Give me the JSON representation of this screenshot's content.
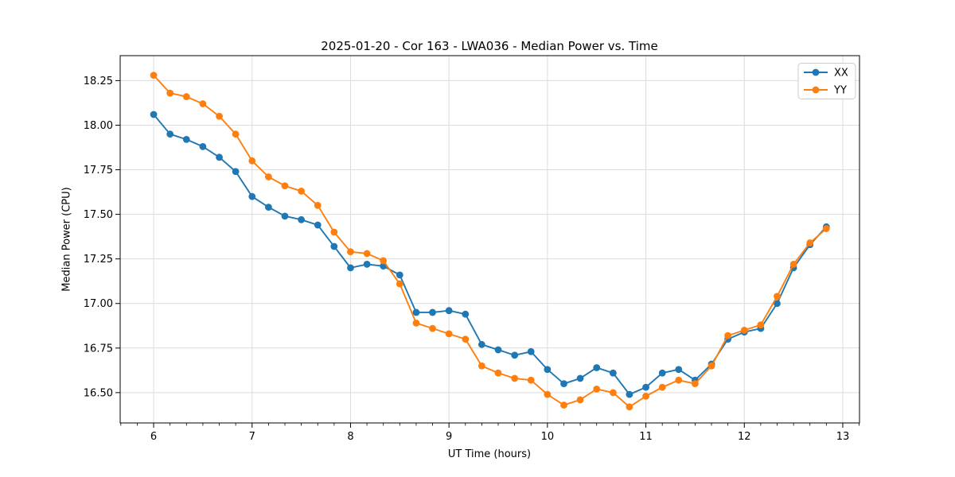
{
  "chart_data": {
    "type": "line",
    "title": "2025-01-20 - Cor 163 - LWA036 - Median Power vs. Time",
    "xlabel": "UT Time (hours)",
    "ylabel": "Median Power (CPU)",
    "xlim": [
      5.66,
      13.17
    ],
    "ylim": [
      16.33,
      18.39
    ],
    "xticks": [
      6,
      7,
      8,
      9,
      10,
      11,
      12,
      13
    ],
    "xtick_labels": [
      "6",
      "7",
      "8",
      "9",
      "10",
      "11",
      "12",
      "13"
    ],
    "yticks": [
      16.5,
      16.75,
      17.0,
      17.25,
      17.5,
      17.75,
      18.0,
      18.25
    ],
    "ytick_labels": [
      "16.50",
      "16.75",
      "17.00",
      "17.25",
      "17.50",
      "17.75",
      "18.00",
      "18.25"
    ],
    "minor_xtick_step_hours": 0.16667,
    "grid": true,
    "legend_position": "upper right",
    "x": [
      6.0,
      6.167,
      6.333,
      6.5,
      6.667,
      6.833,
      7.0,
      7.167,
      7.333,
      7.5,
      7.667,
      7.833,
      8.0,
      8.167,
      8.333,
      8.5,
      8.667,
      8.833,
      9.0,
      9.167,
      9.333,
      9.5,
      9.667,
      9.833,
      10.0,
      10.167,
      10.333,
      10.5,
      10.667,
      10.833,
      11.0,
      11.167,
      11.333,
      11.5,
      11.667,
      11.833,
      12.0,
      12.167,
      12.333,
      12.5,
      12.667,
      12.833
    ],
    "series": [
      {
        "name": "XX",
        "color": "#1f77b4",
        "values": [
          18.06,
          17.95,
          17.92,
          17.88,
          17.82,
          17.74,
          17.6,
          17.54,
          17.49,
          17.47,
          17.44,
          17.32,
          17.2,
          17.22,
          17.21,
          17.16,
          16.95,
          16.95,
          16.96,
          16.94,
          16.77,
          16.74,
          16.71,
          16.73,
          16.63,
          16.55,
          16.58,
          16.64,
          16.61,
          16.49,
          16.53,
          16.61,
          16.63,
          16.57,
          16.66,
          16.8,
          16.84,
          16.86,
          17.0,
          17.2,
          17.33,
          17.43
        ]
      },
      {
        "name": "YY",
        "color": "#ff7f0e",
        "values": [
          18.28,
          18.18,
          18.16,
          18.12,
          18.05,
          17.95,
          17.8,
          17.71,
          17.66,
          17.63,
          17.55,
          17.4,
          17.29,
          17.28,
          17.24,
          17.11,
          16.89,
          16.86,
          16.83,
          16.8,
          16.65,
          16.61,
          16.58,
          16.57,
          16.49,
          16.43,
          16.46,
          16.52,
          16.5,
          16.42,
          16.48,
          16.53,
          16.57,
          16.55,
          16.65,
          16.82,
          16.85,
          16.88,
          17.04,
          17.22,
          17.34,
          17.42
        ]
      }
    ],
    "style": {
      "grid_color": "#dcdcdc",
      "spine_color": "#000000",
      "tick_color": "#000000",
      "legend_border_color": "#cccccc",
      "background": "#ffffff"
    }
  }
}
